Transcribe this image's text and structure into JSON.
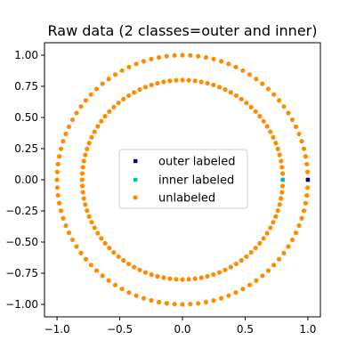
{
  "chart_data": {
    "type": "scatter",
    "title": "Raw data (2 classes=outer and inner)",
    "xlabel": "",
    "ylabel": "",
    "xlim": [
      -1.1,
      1.1
    ],
    "ylim": [
      -1.1,
      1.1
    ],
    "xticks": [
      -1.0,
      -0.5,
      0.0,
      0.5,
      1.0
    ],
    "xtick_labels": [
      "−1.0",
      "−0.5",
      "0.0",
      "0.5",
      "1.0"
    ],
    "yticks": [
      1.0,
      0.75,
      0.5,
      0.25,
      0.0,
      -0.25,
      -0.5,
      -0.75,
      -1.0
    ],
    "ytick_labels": [
      "1.00",
      "0.75",
      "0.50",
      "0.25",
      "0.00",
      "−0.25",
      "−0.50",
      "−0.75",
      "−1.00"
    ],
    "grid": false,
    "legend_position": "center",
    "series": [
      {
        "name": "outer labeled",
        "marker": "square",
        "color": "#000080",
        "points": [
          [
            1.0,
            0.0
          ]
        ]
      },
      {
        "name": "inner labeled",
        "marker": "square",
        "color": "#00bfbf",
        "points": [
          [
            0.8,
            0.0
          ]
        ]
      },
      {
        "name": "unlabeled",
        "marker": "circle",
        "color": "#ff8c00",
        "rings": [
          {
            "radius": 1.0,
            "count": 100
          },
          {
            "radius": 0.8,
            "count": 100
          }
        ]
      }
    ]
  }
}
